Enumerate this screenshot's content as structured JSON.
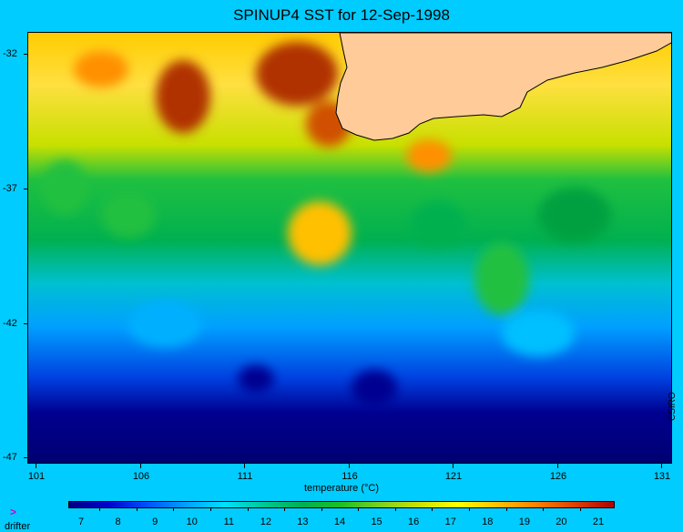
{
  "title": "SPINUP4 SST for 12-Sep-1998",
  "credit": "CSIRO",
  "latitude_ticks": [
    "-32",
    "-37",
    "-42",
    "-47"
  ],
  "longitude_ticks": [
    "101",
    "106",
    "111",
    "116",
    "121",
    "126",
    "131"
  ],
  "colorbar": {
    "title": "temperature (°C)",
    "labels": [
      "7",
      "8",
      "9",
      "10",
      "11",
      "12",
      "13",
      "14",
      "15",
      "16",
      "17",
      "18",
      "19",
      "20",
      "21"
    ],
    "colors": [
      "#000080",
      "#0000cd",
      "#0050ff",
      "#00a0ff",
      "#00e0ff",
      "#00c890",
      "#00b050",
      "#20c020",
      "#80d020",
      "#d0e000",
      "#ffff00",
      "#ffc000",
      "#ff8000",
      "#e04000",
      "#b00000"
    ]
  },
  "legend": {
    "drifter_symbol": ">",
    "drifter_label": "drifter"
  },
  "land_color": "#ffcc99"
}
